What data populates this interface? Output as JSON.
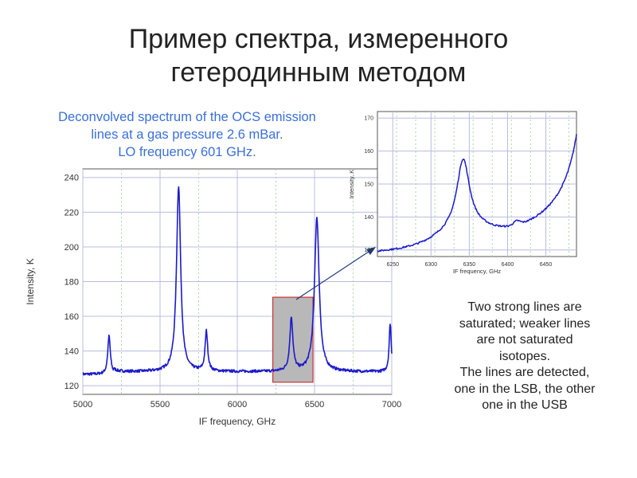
{
  "slide": {
    "title_lines": [
      "Пример спектра, измеренного",
      "гетеродинным методом"
    ],
    "caption_lines": [
      "Deconvolved spectrum of the OCS emission",
      "lines at a gas pressure 2.6 mBar.",
      "LO frequency 601 GHz."
    ],
    "note_lines": [
      "Two strong lines are",
      "saturated; weaker lines",
      "are not saturated",
      "isotopes.",
      "The lines are detected,",
      "one in the LSB, the other",
      "one in the USB"
    ]
  },
  "colors": {
    "line": "#1a1acc",
    "grid": "#b8bce0",
    "grid_dotted": "#a8d8a8",
    "highlight_fill": "#b8b8b8",
    "highlight_border": "#cc3333",
    "arrow": "#1f3a7a",
    "caption": "#3a6fd8"
  },
  "chart_data": [
    {
      "type": "line",
      "xlabel": "IF frequency, GHz",
      "ylabel": "Intensity, K",
      "xlim": [
        5000,
        7000
      ],
      "ylim": [
        115,
        245
      ],
      "xticks": [
        5000,
        5500,
        6000,
        6500,
        7000
      ],
      "yticks": [
        120,
        140,
        160,
        180,
        200,
        220,
        240
      ],
      "baseline": 128,
      "peaks": [
        {
          "x": 5170,
          "y": 150,
          "width": 10
        },
        {
          "x": 5620,
          "y": 235,
          "width": 16
        },
        {
          "x": 5800,
          "y": 151,
          "width": 10
        },
        {
          "x": 6350,
          "y": 159,
          "width": 12
        },
        {
          "x": 6515,
          "y": 217,
          "width": 18
        },
        {
          "x": 6990,
          "y": 156,
          "width": 8
        }
      ],
      "highlight_x": [
        6230,
        6490
      ],
      "highlight_y": [
        122,
        171
      ],
      "grid": true
    },
    {
      "type": "line",
      "xlabel": "IF frequency, GHz",
      "ylabel": "Intensity, K",
      "xlim": [
        6230,
        6490
      ],
      "ylim": [
        128,
        172
      ],
      "xticks": [
        6250,
        6300,
        6350,
        6400,
        6450
      ],
      "yticks": [
        130,
        140,
        150,
        160,
        170
      ],
      "grid": true
    }
  ]
}
